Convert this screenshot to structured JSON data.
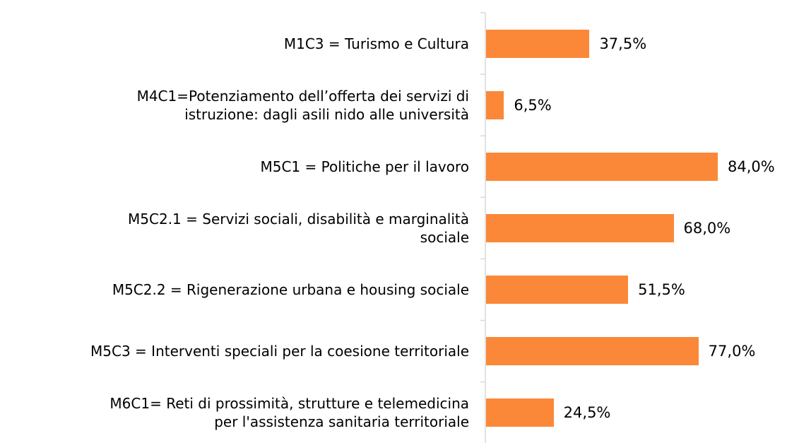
{
  "chart_data": {
    "type": "bar",
    "orientation": "horizontal",
    "categories": [
      "M1C3 = Turismo e Cultura",
      "M4C1=Potenziamento dell’offerta dei servizi di\nistruzione: dagli asili nido alle università",
      "M5C1 = Politiche per il lavoro",
      "M5C2.1 = Servizi sociali, disabilità e marginalità\nsociale",
      "M5C2.2 = Rigenerazione urbana e housing sociale",
      "M5C3 = Interventi speciali per la coesione territoriale",
      "M6C1= Reti di prossimità, strutture e telemedicina\nper l'assistenza sanitaria territoriale"
    ],
    "values": [
      37.5,
      6.5,
      84.0,
      68.0,
      51.5,
      77.0,
      24.5
    ],
    "value_labels": [
      "37,5%",
      "6,5%",
      "84,0%",
      "68,0%",
      "51,5%",
      "77,0%",
      "24,5%"
    ],
    "color": "#fb8838"
  }
}
